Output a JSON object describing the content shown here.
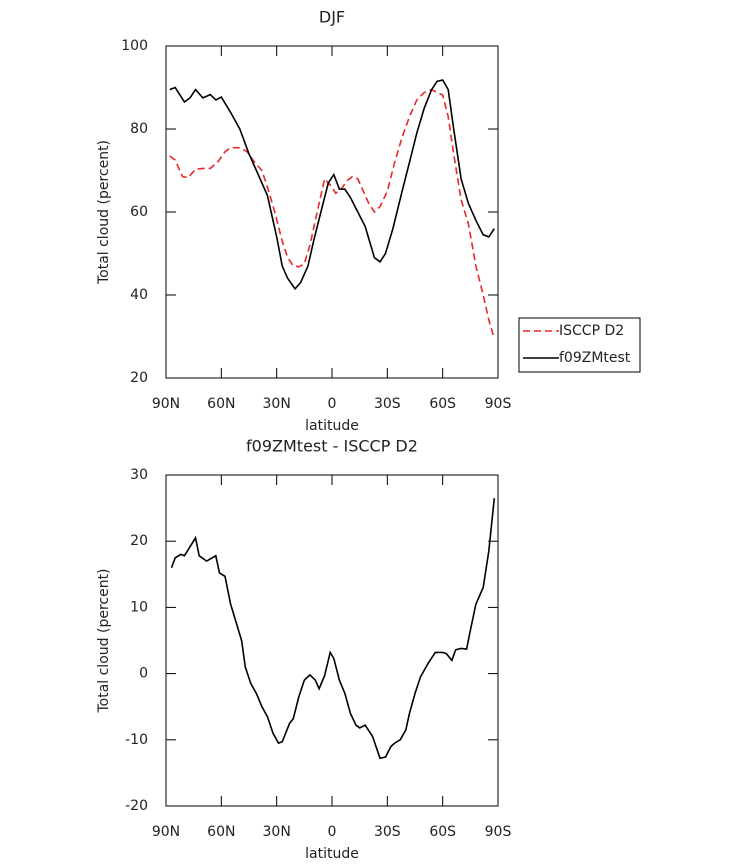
{
  "chart_data": [
    {
      "type": "line",
      "title": "DJF",
      "x_label": "latitude",
      "y_label": "Total cloud (percent)",
      "xlim": [
        90,
        -90
      ],
      "xticks": [
        {
          "value": 90,
          "label": "90N"
        },
        {
          "value": 60,
          "label": "60N"
        },
        {
          "value": 30,
          "label": "30N"
        },
        0,
        {
          "value": -30,
          "label": "30S"
        },
        {
          "value": -60,
          "label": "60S"
        },
        {
          "value": -90,
          "label": "90S"
        }
      ],
      "ylim": [
        20,
        100
      ],
      "yticks": [
        20,
        40,
        60,
        80,
        100
      ],
      "legend": "right",
      "series": [
        {
          "name": "ISCCP D2",
          "color": "#e8282b",
          "dash": "dashed",
          "x": [
            88,
            85,
            81,
            78,
            74,
            70,
            66,
            62,
            58,
            55,
            50,
            46,
            42,
            38,
            35,
            31,
            27,
            24,
            21,
            18,
            15,
            12,
            8,
            4,
            0,
            -2,
            -5,
            -8,
            -11,
            -14,
            -17,
            -20,
            -23,
            -26,
            -30,
            -34,
            -38,
            -42,
            -46,
            -50,
            -54,
            -57,
            -60,
            -63,
            -66,
            -70,
            -74,
            -78,
            -82,
            -85,
            -88
          ],
          "values": [
            73.5,
            72.5,
            68.5,
            68.3,
            70.3,
            70.5,
            70.5,
            72,
            74.5,
            75.5,
            75.5,
            74.5,
            72,
            70,
            66,
            60,
            53,
            49,
            47,
            46.8,
            47.5,
            52,
            60,
            68,
            66,
            64.5,
            65.5,
            67.5,
            68.5,
            68,
            65,
            62,
            60,
            61.3,
            65,
            72,
            78,
            83,
            87,
            88.8,
            89.5,
            88.8,
            88.2,
            83,
            74,
            63,
            57,
            47,
            40,
            34,
            29.5
          ]
        },
        {
          "name": "f09ZMtest",
          "color": "#000000",
          "dash": "solid",
          "x": [
            88,
            85,
            80,
            77,
            74,
            70,
            66,
            63,
            60,
            55,
            50,
            45,
            40,
            35,
            30,
            27,
            24,
            20,
            17,
            13,
            10,
            6,
            2,
            -1,
            -4,
            -7,
            -10,
            -14,
            -18,
            -23,
            -26,
            -29,
            -33,
            -38,
            -42,
            -46,
            -50,
            -54,
            -57,
            -60,
            -63,
            -66,
            -70,
            -74,
            -78,
            -82,
            -85,
            -88
          ],
          "values": [
            89.5,
            90,
            86.5,
            87.5,
            89.5,
            87.5,
            88.3,
            87,
            87.7,
            84,
            80,
            74,
            69,
            64,
            54,
            47,
            44,
            41.5,
            43,
            47,
            53,
            60,
            67,
            69,
            65.5,
            65.5,
            63.5,
            60,
            56.5,
            49,
            48,
            50,
            56,
            65,
            72,
            79,
            85,
            89.5,
            91.5,
            91.8,
            89.5,
            80,
            68,
            62,
            58,
            54.5,
            54,
            56
          ]
        }
      ]
    },
    {
      "type": "line",
      "title": "f09ZMtest - ISCCP D2",
      "x_label": "latitude",
      "y_label": "Total cloud (percent)",
      "xlim": [
        90,
        -90
      ],
      "xticks": [
        {
          "value": 90,
          "label": "90N"
        },
        {
          "value": 60,
          "label": "60N"
        },
        {
          "value": 30,
          "label": "30N"
        },
        0,
        {
          "value": -30,
          "label": "30S"
        },
        {
          "value": -60,
          "label": "60S"
        },
        {
          "value": -90,
          "label": "90S"
        }
      ],
      "ylim": [
        -20,
        30
      ],
      "yticks": [
        -20,
        -10,
        0,
        10,
        20,
        30
      ],
      "series": [
        {
          "color": "#000000",
          "dash": "solid",
          "x": [
            87,
            85,
            82,
            80,
            74,
            72,
            68,
            63,
            61,
            58,
            55,
            49,
            47,
            44,
            41,
            38,
            35,
            32,
            29,
            27,
            23,
            21,
            18,
            15,
            12,
            9,
            7,
            4,
            1,
            -1,
            -4,
            -7,
            -10,
            -13,
            -15,
            -18,
            -22,
            -26,
            -29,
            -32,
            -34,
            -37,
            -40,
            -42,
            -45,
            -48,
            -52,
            -56,
            -60,
            -62,
            -65,
            -67,
            -70,
            -73,
            -75,
            -78,
            -82,
            -85,
            -88
          ],
          "values": [
            16,
            17.5,
            18,
            17.8,
            20.5,
            17.8,
            17,
            17.8,
            15.2,
            14.7,
            10.5,
            5,
            1,
            -1.5,
            -3,
            -5,
            -6.5,
            -9,
            -10.5,
            -10.3,
            -7.5,
            -6.8,
            -3.5,
            -1,
            -0.2,
            -1,
            -2.3,
            -0.3,
            3.2,
            2.3,
            -1,
            -3,
            -6,
            -7.8,
            -8.2,
            -7.8,
            -9.5,
            -12.8,
            -12.6,
            -11,
            -10.5,
            -10,
            -8.5,
            -6,
            -3,
            -0.5,
            1.5,
            3.2,
            3.2,
            3,
            2,
            3.6,
            3.8,
            3.7,
            6.5,
            10.5,
            13,
            18.5,
            26.5
          ]
        }
      ]
    }
  ]
}
